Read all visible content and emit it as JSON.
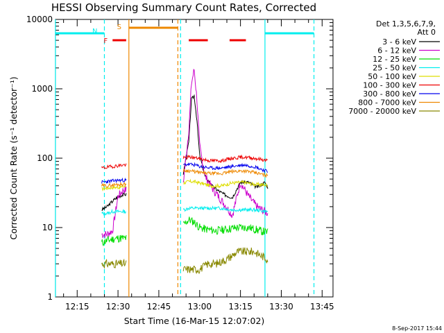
{
  "chart_data": {
    "type": "line",
    "title": "HESSI Observing Summary Count Rates, Corrected",
    "xlabel": "Start Time (16-Mar-15 12:07:02)",
    "ylabel": "Corrected Count Rate (s⁻¹ detector⁻¹)",
    "ylim": [
      1,
      10000
    ],
    "xlim_minutes": [
      "12:07:02",
      "13:49:00"
    ],
    "yscale": "log",
    "y_tick_labels": [
      "1",
      "10",
      "100",
      "1000",
      "10000"
    ],
    "x_tick_labels": [
      "12:15",
      "12:30",
      "12:45",
      "13:00",
      "13:15",
      "13:30",
      "13:45"
    ],
    "legend_title": [
      "Det 1,3,5,6,7,9,",
      "Att 0"
    ],
    "legend_position": "top-right",
    "series": [
      {
        "name": "3 - 6 keV",
        "color": "#000000",
        "x": [
          "12:24",
          "12:26",
          "12:28",
          "12:30",
          "12:32",
          "12:33",
          "12:48",
          "12:50",
          "12:54",
          "12:56",
          "12:57",
          "12:58",
          "12:59",
          "13:00",
          "13:02",
          "13:05",
          "13:09",
          "13:12",
          "13:15",
          "13:18",
          "13:21",
          "13:24",
          "13:25"
        ],
        "y": [
          18,
          20,
          24,
          28,
          30,
          30,
          null,
          null,
          60,
          170,
          700,
          800,
          350,
          110,
          55,
          38,
          30,
          27,
          45,
          45,
          38,
          45,
          38
        ]
      },
      {
        "name": "6 - 12 keV",
        "color": "#cc00cc",
        "x": [
          "12:24",
          "12:26",
          "12:28",
          "12:30",
          "12:32",
          "12:33",
          "12:48",
          "12:50",
          "12:54",
          "12:56",
          "12:57",
          "12:58",
          "12:59",
          "13:00",
          "13:02",
          "13:05",
          "13:09",
          "13:12",
          "13:15",
          "13:18",
          "13:21",
          "13:24",
          "13:25"
        ],
        "y": [
          8,
          8,
          9,
          28,
          35,
          35,
          null,
          null,
          45,
          250,
          1200,
          1900,
          700,
          150,
          55,
          35,
          22,
          15,
          45,
          28,
          20,
          17,
          16
        ]
      },
      {
        "name": "12 - 25 keV",
        "color": "#00dd00",
        "x": [
          "12:24",
          "12:26",
          "12:28",
          "12:30",
          "12:32",
          "12:33",
          "12:48",
          "12:50",
          "12:54",
          "12:56",
          "12:58",
          "13:00",
          "13:02",
          "13:06",
          "13:10",
          "13:14",
          "13:18",
          "13:22",
          "13:25"
        ],
        "y": [
          6,
          6.5,
          6.8,
          7,
          7,
          7,
          null,
          null,
          11,
          13,
          12,
          10,
          9.5,
          9,
          9.5,
          10,
          10,
          9,
          8.5
        ]
      },
      {
        "name": "25 - 50 keV",
        "color": "#00eeee",
        "x": [
          "12:24",
          "12:26",
          "12:28",
          "12:30",
          "12:32",
          "12:33",
          "12:48",
          "12:50",
          "12:54",
          "12:56",
          "12:58",
          "13:00",
          "13:04",
          "13:08",
          "13:12",
          "13:16",
          "13:20",
          "13:25"
        ],
        "y": [
          16,
          16,
          17,
          17,
          17,
          17,
          null,
          null,
          18,
          19,
          19,
          19,
          19,
          19,
          18,
          18,
          18,
          17
        ]
      },
      {
        "name": "50 - 100 keV",
        "color": "#dddd00",
        "x": [
          "12:24",
          "12:26",
          "12:28",
          "12:30",
          "12:32",
          "12:33",
          "12:48",
          "12:50",
          "12:54",
          "12:56",
          "12:58",
          "13:00",
          "13:04",
          "13:08",
          "13:12",
          "13:16",
          "13:20",
          "13:25"
        ],
        "y": [
          36,
          37,
          38,
          38,
          39,
          39,
          null,
          null,
          44,
          46,
          46,
          44,
          40,
          40,
          44,
          45,
          42,
          41
        ]
      },
      {
        "name": "100 - 300 keV",
        "color": "#ee0000",
        "x": [
          "12:24",
          "12:26",
          "12:28",
          "12:30",
          "12:32",
          "12:33",
          "12:48",
          "12:50",
          "12:54",
          "12:56",
          "12:58",
          "13:00",
          "13:04",
          "13:08",
          "13:12",
          "13:16",
          "13:20",
          "13:25"
        ],
        "y": [
          72,
          74,
          76,
          78,
          80,
          80,
          null,
          null,
          100,
          104,
          102,
          98,
          92,
          92,
          100,
          104,
          100,
          92
        ]
      },
      {
        "name": "300 - 800 keV",
        "color": "#0000ee",
        "x": [
          "12:24",
          "12:26",
          "12:28",
          "12:30",
          "12:32",
          "12:33",
          "12:48",
          "12:50",
          "12:54",
          "12:56",
          "12:58",
          "13:00",
          "13:04",
          "13:08",
          "13:12",
          "13:16",
          "13:20",
          "13:25"
        ],
        "y": [
          45,
          46,
          47,
          48,
          48,
          48,
          null,
          null,
          80,
          82,
          80,
          76,
          72,
          72,
          76,
          80,
          76,
          64
        ]
      },
      {
        "name": "800 - 7000 keV",
        "color": "#ee8800",
        "x": [
          "12:24",
          "12:26",
          "12:28",
          "12:30",
          "12:32",
          "12:33",
          "12:48",
          "12:50",
          "12:54",
          "12:56",
          "12:58",
          "13:00",
          "13:04",
          "13:08",
          "13:12",
          "13:16",
          "13:20",
          "13:25"
        ],
        "y": [
          40,
          40,
          41,
          42,
          42,
          42,
          null,
          null,
          66,
          66,
          64,
          62,
          60,
          60,
          64,
          66,
          62,
          56
        ]
      },
      {
        "name": "7000 - 20000 keV",
        "color": "#888800",
        "x": [
          "12:24",
          "12:26",
          "12:28",
          "12:30",
          "12:32",
          "12:33",
          "12:48",
          "12:50",
          "12:54",
          "12:56",
          "12:58",
          "13:00",
          "13:03",
          "13:06",
          "13:10",
          "13:14",
          "13:17",
          "13:20",
          "13:25"
        ],
        "y": [
          3,
          3,
          3,
          3,
          3,
          3,
          null,
          null,
          2.5,
          2.5,
          2.5,
          2.5,
          3,
          3,
          3.5,
          4.5,
          4.5,
          4.5,
          3.5
        ]
      }
    ],
    "annotations": [
      {
        "text": "F",
        "color": "#ee0000",
        "x_start": "12:28",
        "x_end": "12:33",
        "level": "F"
      },
      {
        "text": "N",
        "color": "#00eeee",
        "x_start": "12:08",
        "x_end": "12:25",
        "level": "N"
      },
      {
        "text": "S",
        "color": "#ee8800",
        "x_start": "12:33",
        "x_end": "12:52",
        "level": "S"
      }
    ],
    "intervals": {
      "night_lines": [
        "12:07",
        "12:25",
        "12:53",
        "13:24",
        "13:42"
      ],
      "saa_lines": [
        "12:34",
        "12:52"
      ],
      "flare_bars": [
        [
          "12:28",
          "12:33"
        ],
        [
          "12:56",
          "13:03"
        ],
        [
          "13:11",
          "13:17"
        ]
      ],
      "night_bars": [
        [
          "12:07",
          "12:25"
        ],
        [
          "13:24",
          "13:42"
        ]
      ],
      "saa_bars": [
        [
          "12:34",
          "12:52"
        ]
      ]
    }
  },
  "footer": {
    "timestamp": "8-Sep-2017 15:44"
  }
}
